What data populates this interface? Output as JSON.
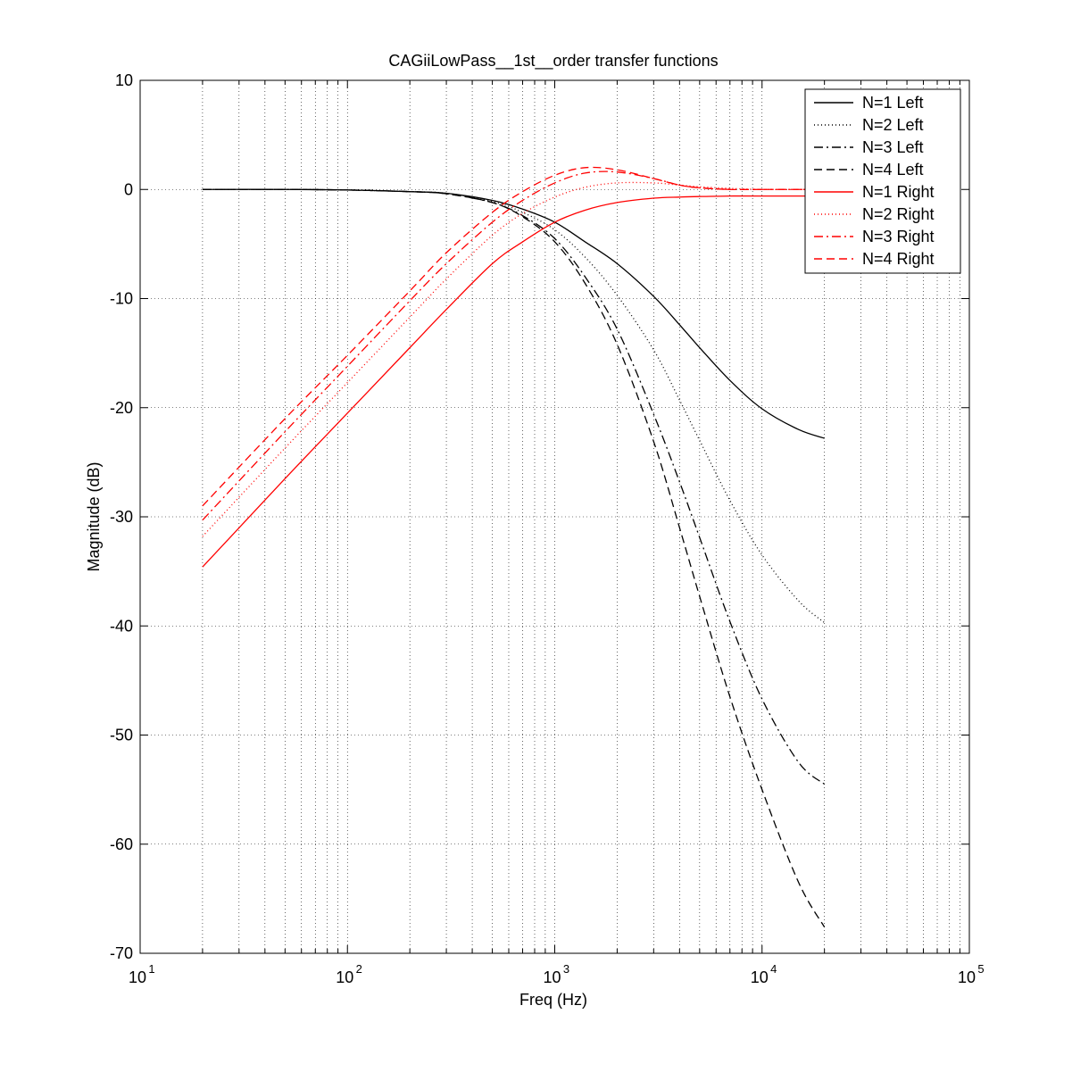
{
  "chart_data": {
    "type": "line",
    "title": "CAGiiLowPass__1st__order transfer functions",
    "xlabel": "Freq (Hz)",
    "ylabel": "Magnitude (dB)",
    "xscale": "log",
    "xlim": [
      10,
      100000
    ],
    "ylim": [
      -70,
      10
    ],
    "grid": true,
    "legend_position": "top-right",
    "x_ticks": [
      {
        "value": 10,
        "base": "10",
        "exp": "1"
      },
      {
        "value": 100,
        "base": "10",
        "exp": "2"
      },
      {
        "value": 1000,
        "base": "10",
        "exp": "3"
      },
      {
        "value": 10000,
        "base": "10",
        "exp": "4"
      },
      {
        "value": 100000,
        "base": "10",
        "exp": "5"
      }
    ],
    "y_ticks": [
      10,
      0,
      -10,
      -20,
      -30,
      -40,
      -50,
      -60,
      -70
    ],
    "y_tick_labels": [
      "10",
      "0",
      "-10",
      "-20",
      "-30",
      "-40",
      "-50",
      "-60",
      "-70"
    ],
    "x": [
      20,
      50,
      100,
      200,
      300,
      500,
      700,
      1000,
      1400,
      2000,
      3000,
      4000,
      5000,
      7000,
      10000,
      15000,
      20000
    ],
    "series": [
      {
        "name": "N=1 Left",
        "color": "#000000",
        "dash": "solid",
        "values": [
          0,
          0,
          -0.05,
          -0.2,
          -0.35,
          -1.0,
          -1.8,
          -3.0,
          -4.8,
          -6.8,
          -9.8,
          -12.4,
          -14.5,
          -17.5,
          -20.1,
          -22.0,
          -22.8
        ]
      },
      {
        "name": "N=2 Left",
        "color": "#000000",
        "dash": "dotted",
        "values": [
          0,
          0,
          -0.05,
          -0.2,
          -0.35,
          -1.1,
          -2.1,
          -3.7,
          -6.2,
          -9.7,
          -14.7,
          -19.3,
          -23.0,
          -28.5,
          -33.5,
          -37.7,
          -39.7
        ]
      },
      {
        "name": "N=3 Left",
        "color": "#000000",
        "dash": "dashdot",
        "values": [
          0,
          0,
          -0.05,
          -0.2,
          -0.4,
          -1.2,
          -2.4,
          -4.5,
          -8.0,
          -12.8,
          -20.6,
          -26.8,
          -31.9,
          -39.6,
          -46.7,
          -52.5,
          -54.5
        ]
      },
      {
        "name": "N=4 Left",
        "color": "#000000",
        "dash": "dashed",
        "values": [
          0,
          0,
          -0.05,
          -0.2,
          -0.4,
          -1.2,
          -2.5,
          -4.8,
          -8.6,
          -14.2,
          -23.1,
          -31.0,
          -37.3,
          -46.5,
          -55.0,
          -63.5,
          -67.6
        ]
      },
      {
        "name": "N=1 Right",
        "color": "#ff0000",
        "dash": "solid",
        "values": [
          -34.6,
          -26.5,
          -20.5,
          -14.5,
          -11.0,
          -6.8,
          -4.8,
          -3.0,
          -1.9,
          -1.2,
          -0.8,
          -0.7,
          -0.65,
          -0.6,
          -0.6,
          -0.6,
          -0.6
        ]
      },
      {
        "name": "N=2 Right",
        "color": "#ff0000",
        "dash": "dotted",
        "values": [
          -31.8,
          -23.7,
          -17.7,
          -11.7,
          -8.2,
          -4.2,
          -2.2,
          -0.7,
          0.2,
          0.6,
          0.6,
          0.4,
          0.25,
          0.1,
          0.0,
          0.0,
          0.0
        ]
      },
      {
        "name": "N=3 Right",
        "color": "#ff0000",
        "dash": "dashdot",
        "values": [
          -30.3,
          -22.2,
          -16.2,
          -10.2,
          -6.8,
          -3.0,
          -1.0,
          0.6,
          1.5,
          1.6,
          1.0,
          0.4,
          0.15,
          0.0,
          0.0,
          0.0,
          0.0
        ]
      },
      {
        "name": "N=4 Right",
        "color": "#ff0000",
        "dash": "dashed",
        "values": [
          -29.0,
          -21.0,
          -15.2,
          -9.3,
          -5.8,
          -2.1,
          -0.2,
          1.3,
          2.0,
          1.8,
          1.0,
          0.4,
          0.15,
          0.0,
          0.0,
          0.0,
          0.0
        ]
      }
    ]
  }
}
